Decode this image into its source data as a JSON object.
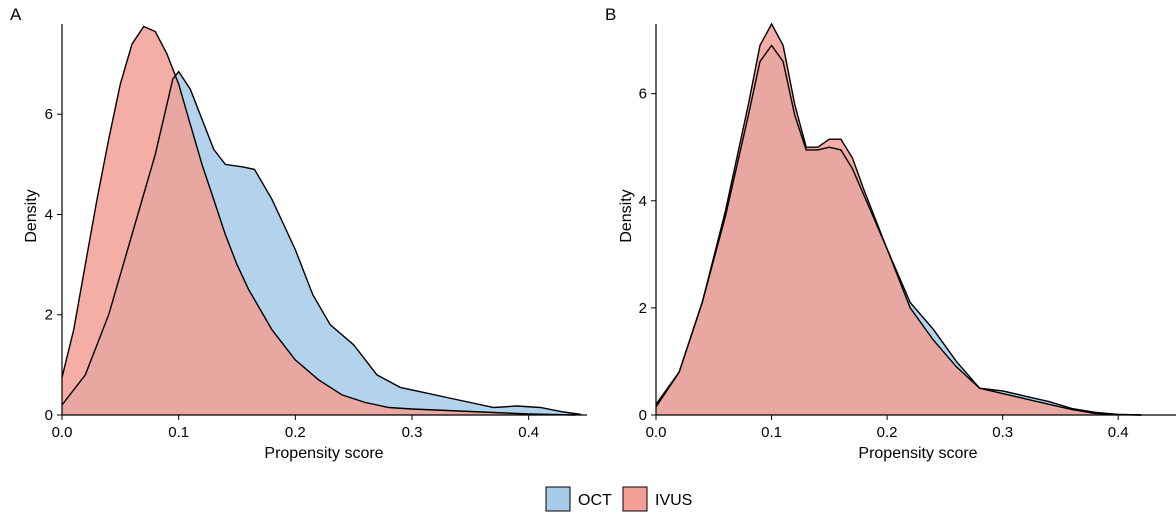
{
  "chart_data": [
    {
      "type": "area",
      "panel_label": "A",
      "xlabel": "Propensity score",
      "ylabel": "Density",
      "xlim": [
        0,
        0.45
      ],
      "ylim": [
        0,
        7.8
      ],
      "xticks": [
        "0.0",
        "0.1",
        "0.2",
        "0.3",
        "0.4"
      ],
      "yticks": [
        "0",
        "2",
        "4",
        "6"
      ],
      "series": [
        {
          "name": "OCT",
          "points": [
            [
              0.0,
              0.2
            ],
            [
              0.02,
              0.8
            ],
            [
              0.04,
              2.0
            ],
            [
              0.06,
              3.6
            ],
            [
              0.08,
              5.2
            ],
            [
              0.095,
              6.7
            ],
            [
              0.1,
              6.85
            ],
            [
              0.11,
              6.5
            ],
            [
              0.12,
              5.9
            ],
            [
              0.13,
              5.3
            ],
            [
              0.14,
              5.0
            ],
            [
              0.155,
              4.95
            ],
            [
              0.165,
              4.9
            ],
            [
              0.18,
              4.3
            ],
            [
              0.2,
              3.3
            ],
            [
              0.215,
              2.4
            ],
            [
              0.23,
              1.8
            ],
            [
              0.25,
              1.4
            ],
            [
              0.27,
              0.8
            ],
            [
              0.29,
              0.55
            ],
            [
              0.31,
              0.45
            ],
            [
              0.33,
              0.35
            ],
            [
              0.35,
              0.25
            ],
            [
              0.37,
              0.15
            ],
            [
              0.39,
              0.18
            ],
            [
              0.41,
              0.15
            ],
            [
              0.43,
              0.06
            ],
            [
              0.445,
              0.01
            ]
          ]
        },
        {
          "name": "IVUS",
          "points": [
            [
              0.0,
              0.75
            ],
            [
              0.01,
              1.7
            ],
            [
              0.02,
              3.0
            ],
            [
              0.03,
              4.3
            ],
            [
              0.04,
              5.5
            ],
            [
              0.05,
              6.6
            ],
            [
              0.06,
              7.4
            ],
            [
              0.07,
              7.75
            ],
            [
              0.08,
              7.65
            ],
            [
              0.09,
              7.2
            ],
            [
              0.1,
              6.6
            ],
            [
              0.11,
              5.8
            ],
            [
              0.12,
              5.0
            ],
            [
              0.13,
              4.3
            ],
            [
              0.14,
              3.6
            ],
            [
              0.15,
              3.0
            ],
            [
              0.16,
              2.5
            ],
            [
              0.18,
              1.7
            ],
            [
              0.2,
              1.1
            ],
            [
              0.22,
              0.7
            ],
            [
              0.24,
              0.4
            ],
            [
              0.26,
              0.25
            ],
            [
              0.28,
              0.15
            ],
            [
              0.3,
              0.12
            ],
            [
              0.32,
              0.1
            ],
            [
              0.34,
              0.08
            ],
            [
              0.36,
              0.06
            ],
            [
              0.38,
              0.04
            ],
            [
              0.4,
              0.02
            ],
            [
              0.42,
              0.01
            ],
            [
              0.44,
              0.0
            ]
          ]
        }
      ]
    },
    {
      "type": "area",
      "panel_label": "B",
      "xlabel": "Propensity score",
      "ylabel": "Density",
      "xlim": [
        0,
        0.45
      ],
      "ylim": [
        0,
        7.3
      ],
      "xticks": [
        "0.0",
        "0.1",
        "0.2",
        "0.3",
        "0.4"
      ],
      "yticks": [
        "0",
        "2",
        "4",
        "6"
      ],
      "series": [
        {
          "name": "OCT",
          "points": [
            [
              0.0,
              0.2
            ],
            [
              0.02,
              0.8
            ],
            [
              0.04,
              2.1
            ],
            [
              0.06,
              3.7
            ],
            [
              0.08,
              5.6
            ],
            [
              0.09,
              6.6
            ],
            [
              0.1,
              6.9
            ],
            [
              0.11,
              6.6
            ],
            [
              0.12,
              5.6
            ],
            [
              0.13,
              4.95
            ],
            [
              0.14,
              4.95
            ],
            [
              0.15,
              5.0
            ],
            [
              0.16,
              4.95
            ],
            [
              0.17,
              4.6
            ],
            [
              0.18,
              4.1
            ],
            [
              0.2,
              3.1
            ],
            [
              0.22,
              2.1
            ],
            [
              0.24,
              1.6
            ],
            [
              0.26,
              1.0
            ],
            [
              0.28,
              0.5
            ],
            [
              0.3,
              0.45
            ],
            [
              0.32,
              0.35
            ],
            [
              0.34,
              0.25
            ],
            [
              0.36,
              0.12
            ],
            [
              0.38,
              0.05
            ],
            [
              0.4,
              0.01
            ],
            [
              0.42,
              0.0
            ]
          ]
        },
        {
          "name": "IVUS",
          "points": [
            [
              0.0,
              0.15
            ],
            [
              0.02,
              0.8
            ],
            [
              0.04,
              2.1
            ],
            [
              0.06,
              3.8
            ],
            [
              0.08,
              5.8
            ],
            [
              0.09,
              6.9
            ],
            [
              0.1,
              7.3
            ],
            [
              0.11,
              6.9
            ],
            [
              0.12,
              5.8
            ],
            [
              0.13,
              5.0
            ],
            [
              0.14,
              5.0
            ],
            [
              0.15,
              5.15
            ],
            [
              0.16,
              5.15
            ],
            [
              0.17,
              4.8
            ],
            [
              0.18,
              4.2
            ],
            [
              0.2,
              3.1
            ],
            [
              0.22,
              2.0
            ],
            [
              0.24,
              1.4
            ],
            [
              0.26,
              0.9
            ],
            [
              0.28,
              0.5
            ],
            [
              0.3,
              0.4
            ],
            [
              0.32,
              0.3
            ],
            [
              0.34,
              0.2
            ],
            [
              0.36,
              0.1
            ],
            [
              0.38,
              0.03
            ],
            [
              0.4,
              0.01
            ],
            [
              0.42,
              0.0
            ]
          ]
        }
      ]
    }
  ],
  "legend": {
    "placement": "bottom-center",
    "items": [
      {
        "label": "OCT",
        "color": "#a6cae8"
      },
      {
        "label": "IVUS",
        "color": "#f2a095"
      }
    ]
  },
  "colors": {
    "OCT": "#a6cae8",
    "IVUS": "#f2a095",
    "overlap": "#c08f92",
    "outline": "#000000"
  }
}
